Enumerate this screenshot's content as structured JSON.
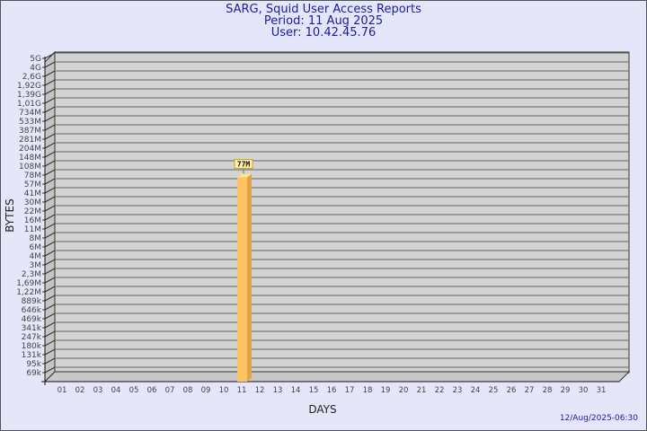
{
  "chart_data": {
    "type": "bar",
    "title": "SARG, Squid User Access Reports",
    "subtitle_period": "Period: 11 Aug 2025",
    "subtitle_user": "User: 10.42.45.76",
    "xlabel": "DAYS",
    "ylabel": "BYTES",
    "y_scale": "log",
    "y_tick_labels": [
      "5G",
      "4G",
      "2,6G",
      "1,92G",
      "1,39G",
      "1,01G",
      "734M",
      "533M",
      "387M",
      "281M",
      "204M",
      "148M",
      "108M",
      "78M",
      "57M",
      "41M",
      "30M",
      "22M",
      "16M",
      "11M",
      "8M",
      "6M",
      "4M",
      "3M",
      "2,3M",
      "1,69M",
      "1,22M",
      "889k",
      "646k",
      "469k",
      "341k",
      "247k",
      "180k",
      "131k",
      "95k",
      "69k"
    ],
    "categories": [
      "01",
      "02",
      "03",
      "04",
      "05",
      "06",
      "07",
      "08",
      "09",
      "10",
      "11",
      "12",
      "13",
      "14",
      "15",
      "16",
      "17",
      "18",
      "19",
      "20",
      "21",
      "22",
      "23",
      "24",
      "25",
      "26",
      "27",
      "28",
      "29",
      "30",
      "31"
    ],
    "values": [
      null,
      null,
      null,
      null,
      null,
      null,
      null,
      null,
      null,
      null,
      77000000,
      null,
      null,
      null,
      null,
      null,
      null,
      null,
      null,
      null,
      null,
      null,
      null,
      null,
      null,
      null,
      null,
      null,
      null,
      null,
      null
    ],
    "data_labels": {
      "11": "77M"
    },
    "grid": true,
    "colors": {
      "background": "#e6e6fa",
      "plot": "#d3d3d3",
      "bar": "#fcc463",
      "bar_side": "#e0a448",
      "bar_top": "#fde58a",
      "title": "#1a1aa6"
    }
  },
  "footer": {
    "timestamp": "12/Aug/2025-06:30"
  }
}
